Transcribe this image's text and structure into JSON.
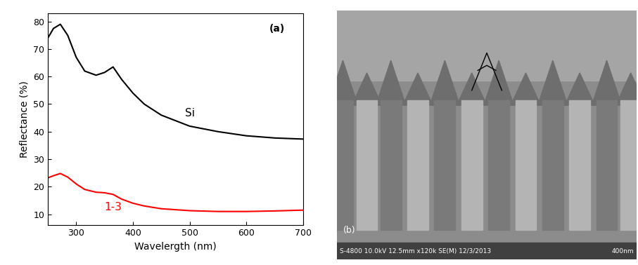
{
  "chart_data": {
    "type": "line",
    "x_label": "Wavelergth (nm)",
    "y_label": "Reflectance (%)",
    "annotation": "(a)",
    "x": [
      250,
      260,
      272,
      285,
      300,
      315,
      335,
      350,
      365,
      380,
      400,
      420,
      450,
      500,
      550,
      600,
      650,
      700
    ],
    "series": [
      {
        "name": "Si",
        "color": "#000000",
        "values": [
          74,
          77.5,
          79,
          75,
          67,
          62,
          60.5,
          61.5,
          63.5,
          59,
          54,
          50,
          46,
          42,
          40,
          38.5,
          37.7,
          37.3
        ]
      },
      {
        "name": "1-3",
        "color": "#ff0000",
        "values": [
          23.2,
          24,
          24.8,
          23.5,
          21,
          19,
          18,
          17.8,
          17.2,
          15.5,
          14,
          13,
          12,
          11.3,
          11,
          11,
          11.2,
          11.5
        ]
      }
    ],
    "xlim": [
      250,
      700
    ],
    "xticks": [
      300,
      400,
      500,
      600,
      700
    ],
    "ylim": [
      6,
      83
    ],
    "yticks": [
      10,
      20,
      30,
      40,
      50,
      60,
      70,
      80
    ],
    "grid": false
  },
  "image_panel": {
    "label": "(b)",
    "caption": "S-4800 10.0kV 12.5mm x120k SE(M) 12/3/2013",
    "scale_bar": "400nm"
  }
}
